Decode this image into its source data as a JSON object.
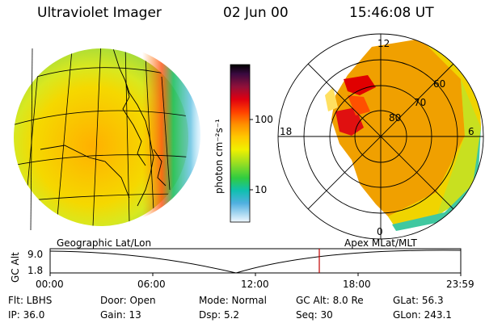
{
  "header": {
    "instrument": "Ultraviolet Imager",
    "date": "02 Jun 00",
    "time": "15:46:08 UT"
  },
  "colorbar": {
    "unit_label": "photon cm⁻²s⁻¹",
    "ticks": [
      "100",
      "10"
    ],
    "colors": [
      "#000000",
      "#2a0a2a",
      "#7a0a3a",
      "#c0001a",
      "#ff2020",
      "#ff6a00",
      "#ffa000",
      "#ffd200",
      "#e8ef10",
      "#a8e020",
      "#40d040",
      "#10c0b0",
      "#40b0e0",
      "#a0d0f0",
      "#e0f0ff"
    ]
  },
  "left_panel": {
    "caption": "Geographic Lat/Lon"
  },
  "right_panel": {
    "caption": "Apex MLat/MLT",
    "mlt_labels": {
      "top": "12",
      "left": "18",
      "right": "6",
      "bottom": "0"
    },
    "lat_labels": [
      "80",
      "70",
      "60"
    ]
  },
  "timeline": {
    "ylabel": "GC Alt",
    "yticks": [
      "9.0",
      "1.8"
    ],
    "xticks": [
      "00:00",
      "06:00",
      "12:00",
      "18:00",
      "23:59"
    ],
    "current_marker_color": "#c00000"
  },
  "status": {
    "flt": "Flt: LBHS",
    "door": "Door: Open",
    "mode": "Mode: Normal",
    "gc_alt": "GC Alt: 8.0 Re",
    "glat": "GLat:  56.3",
    "ip": "IP: 36.0",
    "gain": "Gain: 13",
    "dsp": "Dsp:     5.2",
    "seq": "Seq: 30",
    "glon": "GLon: 243.1"
  }
}
